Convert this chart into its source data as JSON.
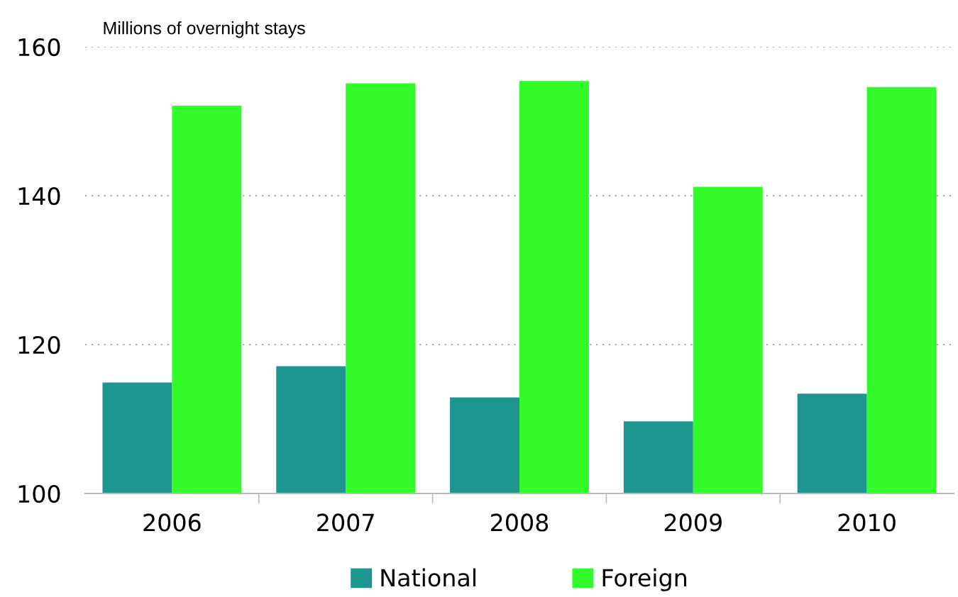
{
  "chart_data": {
    "type": "bar",
    "ylabel": "Millions of overnight stays",
    "categories": [
      "2006",
      "2007",
      "2008",
      "2009",
      "2010"
    ],
    "series": [
      {
        "name": "National",
        "color": "#1e9690",
        "values": [
          114.9,
          117.1,
          112.9,
          109.7,
          113.4
        ]
      },
      {
        "name": "Foreign",
        "color": "#33fa2b",
        "values": [
          152.1,
          155.1,
          155.4,
          141.2,
          154.6
        ]
      }
    ],
    "ylim": [
      100,
      160
    ],
    "yticks": [
      100,
      120,
      140,
      160
    ],
    "grid": "y",
    "legend": "bottom"
  }
}
